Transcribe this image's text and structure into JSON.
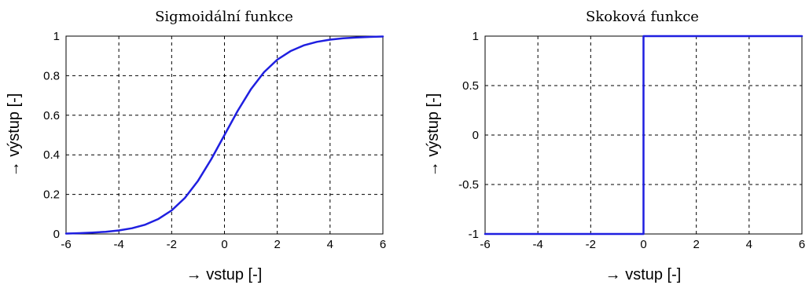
{
  "chart_data": [
    {
      "type": "line",
      "title": "Sigmoidální funkce",
      "xlabel": "→ vstup [-]",
      "ylabel": "→ výstup [-]",
      "xlim": [
        -6,
        6
      ],
      "ylim": [
        0,
        1
      ],
      "xticks": [
        -6,
        -4,
        -2,
        0,
        2,
        4,
        6
      ],
      "yticks": [
        0,
        0.2,
        0.4,
        0.6,
        0.8,
        1
      ],
      "xtick_labels": [
        "-6",
        "-4",
        "-2",
        "0",
        "2",
        "4",
        "6"
      ],
      "ytick_labels": [
        "0",
        "0.2",
        "0.4",
        "0.6",
        "0.8",
        "1"
      ],
      "grid": true,
      "line_color": "#1f1fe0",
      "series": [
        {
          "x": [
            -6,
            -5.5,
            -5,
            -4.5,
            -4,
            -3.5,
            -3,
            -2.5,
            -2,
            -1.5,
            -1,
            -0.5,
            0,
            0.5,
            1,
            1.5,
            2,
            2.5,
            3,
            3.5,
            4,
            4.5,
            5,
            5.5,
            6
          ],
          "y": [
            0.002,
            0.004,
            0.007,
            0.011,
            0.018,
            0.029,
            0.047,
            0.076,
            0.119,
            0.182,
            0.269,
            0.378,
            0.5,
            0.622,
            0.731,
            0.818,
            0.881,
            0.924,
            0.953,
            0.971,
            0.982,
            0.989,
            0.993,
            0.996,
            0.998
          ]
        }
      ]
    },
    {
      "type": "line",
      "title": "Skoková funkce",
      "xlabel": "→ vstup [-]",
      "ylabel": "→ výstup [-]",
      "xlim": [
        -6,
        6
      ],
      "ylim": [
        -1,
        1
      ],
      "xticks": [
        -6,
        -4,
        -2,
        0,
        2,
        4,
        6
      ],
      "yticks": [
        -1,
        -0.5,
        0,
        0.5,
        1
      ],
      "xtick_labels": [
        "-6",
        "-4",
        "-2",
        "0",
        "2",
        "4",
        "6"
      ],
      "ytick_labels": [
        "-1",
        "-0.5",
        "0",
        "0.5",
        "1"
      ],
      "grid": true,
      "line_color": "#1f1fe0",
      "series": [
        {
          "x": [
            -6,
            0,
            0,
            6
          ],
          "y": [
            -1,
            -1,
            1,
            1
          ]
        }
      ]
    }
  ]
}
